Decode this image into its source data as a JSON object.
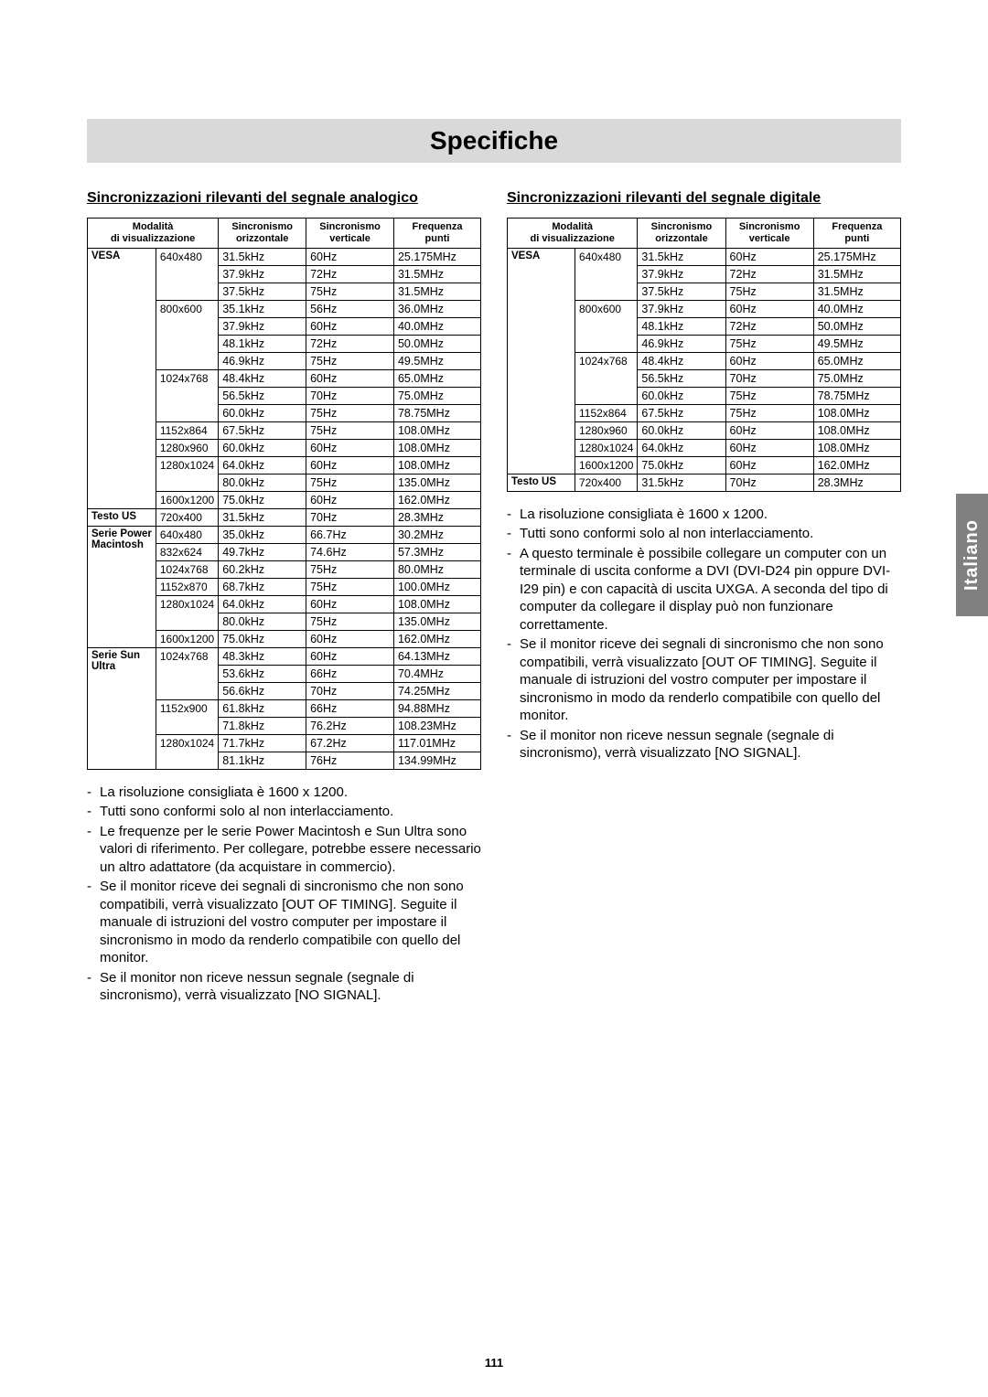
{
  "page_number": "111",
  "title": "Specifiche",
  "side_tab": "Italiano",
  "left": {
    "heading": "Sincronizzazioni rilevanti del segnale analogico",
    "table": {
      "headers": [
        "Modalità di visualizzazione",
        "",
        "Sincronismo orizzontale",
        "Sincronismo verticale",
        "Frequenza punti"
      ],
      "groups": [
        {
          "cat": "VESA",
          "rows": [
            {
              "res": "640x480",
              "h": "31.5kHz",
              "v": "60Hz",
              "d": "25.175MHz"
            },
            {
              "res": "",
              "h": "37.9kHz",
              "v": "72Hz",
              "d": "31.5MHz"
            },
            {
              "res": "",
              "h": "37.5kHz",
              "v": "75Hz",
              "d": "31.5MHz"
            },
            {
              "res": "800x600",
              "h": "35.1kHz",
              "v": "56Hz",
              "d": "36.0MHz"
            },
            {
              "res": "",
              "h": "37.9kHz",
              "v": "60Hz",
              "d": "40.0MHz"
            },
            {
              "res": "",
              "h": "48.1kHz",
              "v": "72Hz",
              "d": "50.0MHz"
            },
            {
              "res": "",
              "h": "46.9kHz",
              "v": "75Hz",
              "d": "49.5MHz"
            },
            {
              "res": "1024x768",
              "h": "48.4kHz",
              "v": "60Hz",
              "d": "65.0MHz"
            },
            {
              "res": "",
              "h": "56.5kHz",
              "v": "70Hz",
              "d": "75.0MHz"
            },
            {
              "res": "",
              "h": "60.0kHz",
              "v": "75Hz",
              "d": "78.75MHz"
            },
            {
              "res": "1152x864",
              "h": "67.5kHz",
              "v": "75Hz",
              "d": "108.0MHz"
            },
            {
              "res": "1280x960",
              "h": "60.0kHz",
              "v": "60Hz",
              "d": "108.0MHz"
            },
            {
              "res": "1280x1024",
              "h": "64.0kHz",
              "v": "60Hz",
              "d": "108.0MHz"
            },
            {
              "res": "",
              "h": "80.0kHz",
              "v": "75Hz",
              "d": "135.0MHz"
            },
            {
              "res": "1600x1200",
              "h": "75.0kHz",
              "v": "60Hz",
              "d": "162.0MHz"
            }
          ]
        },
        {
          "cat": "Testo US",
          "rows": [
            {
              "res": "720x400",
              "h": "31.5kHz",
              "v": "70Hz",
              "d": "28.3MHz"
            }
          ]
        },
        {
          "cat": "Serie Power Macintosh",
          "rows": [
            {
              "res": "640x480",
              "h": "35.0kHz",
              "v": "66.7Hz",
              "d": "30.2MHz"
            },
            {
              "res": "832x624",
              "h": "49.7kHz",
              "v": "74.6Hz",
              "d": "57.3MHz"
            },
            {
              "res": "1024x768",
              "h": "60.2kHz",
              "v": "75Hz",
              "d": "80.0MHz"
            },
            {
              "res": "1152x870",
              "h": "68.7kHz",
              "v": "75Hz",
              "d": "100.0MHz"
            },
            {
              "res": "1280x1024",
              "h": "64.0kHz",
              "v": "60Hz",
              "d": "108.0MHz"
            },
            {
              "res": "",
              "h": "80.0kHz",
              "v": "75Hz",
              "d": "135.0MHz"
            },
            {
              "res": "1600x1200",
              "h": "75.0kHz",
              "v": "60Hz",
              "d": "162.0MHz"
            }
          ]
        },
        {
          "cat": "Serie Sun Ultra",
          "rows": [
            {
              "res": "1024x768",
              "h": "48.3kHz",
              "v": "60Hz",
              "d": "64.13MHz"
            },
            {
              "res": "",
              "h": "53.6kHz",
              "v": "66Hz",
              "d": "70.4MHz"
            },
            {
              "res": "",
              "h": "56.6kHz",
              "v": "70Hz",
              "d": "74.25MHz"
            },
            {
              "res": "1152x900",
              "h": "61.8kHz",
              "v": "66Hz",
              "d": "94.88MHz"
            },
            {
              "res": "",
              "h": "71.8kHz",
              "v": "76.2Hz",
              "d": "108.23MHz"
            },
            {
              "res": "1280x1024",
              "h": "71.7kHz",
              "v": "67.2Hz",
              "d": "117.01MHz"
            },
            {
              "res": "",
              "h": "81.1kHz",
              "v": "76Hz",
              "d": "134.99MHz"
            }
          ]
        }
      ]
    },
    "notes": [
      "La risoluzione consigliata è 1600 x 1200.",
      "Tutti sono conformi solo al non interlacciamento.",
      "Le frequenze per le serie Power Macintosh e Sun Ultra sono valori di riferimento. Per collegare, potrebbe essere necessario un altro adattatore (da acquistare in commercio).",
      "Se il monitor riceve dei segnali di sincronismo che non sono compatibili, verrà visualizzato [OUT OF TIMING]. Seguite il manuale di istruzioni del vostro computer per impostare il sincronismo in modo da renderlo compatibile con quello del monitor.",
      "Se il monitor non riceve nessun segnale (segnale di sincronismo), verrà visualizzato [NO SIGNAL]."
    ]
  },
  "right": {
    "heading": "Sincronizzazioni rilevanti del segnale digitale",
    "table": {
      "headers": [
        "Modalità di visualizzazione",
        "",
        "Sincronismo orizzontale",
        "Sincronismo verticale",
        "Frequenza punti"
      ],
      "groups": [
        {
          "cat": "VESA",
          "rows": [
            {
              "res": "640x480",
              "h": "31.5kHz",
              "v": "60Hz",
              "d": "25.175MHz"
            },
            {
              "res": "",
              "h": "37.9kHz",
              "v": "72Hz",
              "d": "31.5MHz"
            },
            {
              "res": "",
              "h": "37.5kHz",
              "v": "75Hz",
              "d": "31.5MHz"
            },
            {
              "res": "800x600",
              "h": "37.9kHz",
              "v": "60Hz",
              "d": "40.0MHz"
            },
            {
              "res": "",
              "h": "48.1kHz",
              "v": "72Hz",
              "d": "50.0MHz"
            },
            {
              "res": "",
              "h": "46.9kHz",
              "v": "75Hz",
              "d": "49.5MHz"
            },
            {
              "res": "1024x768",
              "h": "48.4kHz",
              "v": "60Hz",
              "d": "65.0MHz"
            },
            {
              "res": "",
              "h": "56.5kHz",
              "v": "70Hz",
              "d": "75.0MHz"
            },
            {
              "res": "",
              "h": "60.0kHz",
              "v": "75Hz",
              "d": "78.75MHz"
            },
            {
              "res": "1152x864",
              "h": "67.5kHz",
              "v": "75Hz",
              "d": "108.0MHz"
            },
            {
              "res": "1280x960",
              "h": "60.0kHz",
              "v": "60Hz",
              "d": "108.0MHz"
            },
            {
              "res": "1280x1024",
              "h": "64.0kHz",
              "v": "60Hz",
              "d": "108.0MHz"
            },
            {
              "res": "1600x1200",
              "h": "75.0kHz",
              "v": "60Hz",
              "d": "162.0MHz"
            }
          ]
        },
        {
          "cat": "Testo US",
          "rows": [
            {
              "res": "720x400",
              "h": "31.5kHz",
              "v": "70Hz",
              "d": "28.3MHz"
            }
          ]
        }
      ]
    },
    "notes": [
      "La risoluzione consigliata è 1600 x 1200.",
      "Tutti sono conformi solo al non interlacciamento.",
      "A questo terminale è possibile collegare un computer con un terminale di uscita conforme a DVI (DVI-D24 pin oppure DVI-I29 pin) e con capacità di uscita UXGA. A seconda del tipo di computer da collegare il display può non funzionare correttamente.",
      "Se il monitor riceve dei segnali di sincronismo che non sono compatibili, verrà visualizzato [OUT OF TIMING]. Seguite il manuale di istruzioni del vostro computer per impostare il sincronismo in modo da renderlo compatibile con quello del monitor.",
      "Se il monitor non riceve nessun segnale (segnale di sincronismo), verrà visualizzato [NO SIGNAL]."
    ]
  }
}
